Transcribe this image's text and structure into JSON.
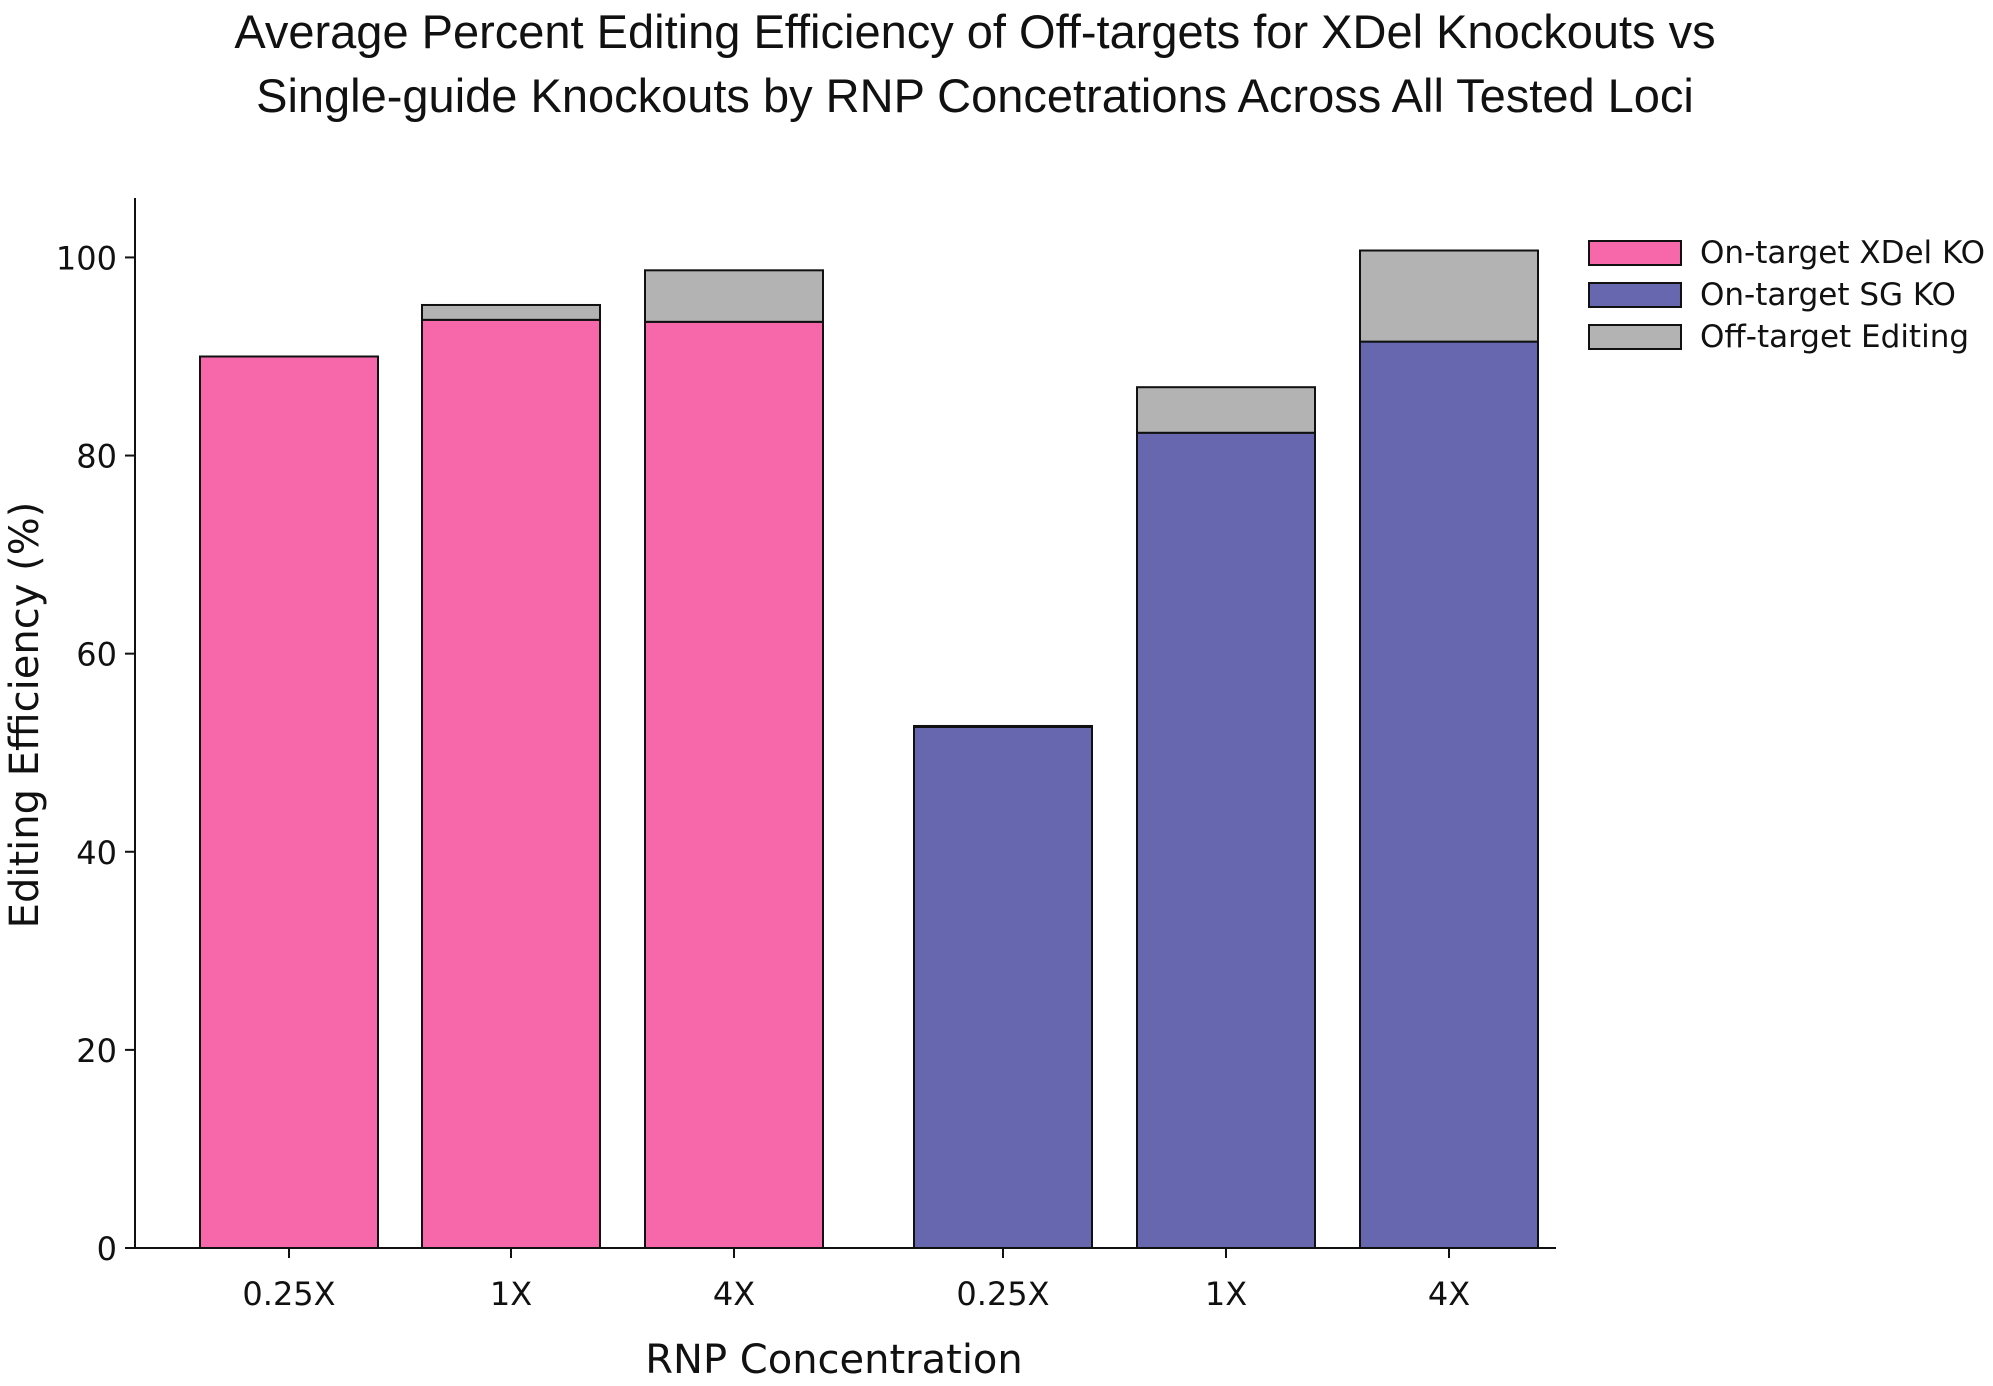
{
  "chart_data": {
    "type": "bar",
    "stacked": true,
    "title_lines": [
      "Average Percent Editing Efficiency of Off-targets for XDel Knockouts vs",
      "Single-guide Knockouts by RNP Concetrations Across All Tested Loci"
    ],
    "xlabel": "RNP Concentration",
    "ylabel": "Editing Efficiency (%)",
    "ylim": [
      0,
      106
    ],
    "yticks": [
      0,
      20,
      40,
      60,
      80,
      100
    ],
    "grid": false,
    "legend_position": "top-right",
    "categories": [
      "0.25X",
      "1X",
      "4X",
      "0.25X",
      "1X",
      "4X"
    ],
    "groups": [
      "XDel KO",
      "SG KO"
    ],
    "series": [
      {
        "name": "On-target XDel KO",
        "color": "#f768ab",
        "values": [
          90.0,
          93.7,
          93.5,
          0,
          0,
          0
        ]
      },
      {
        "name": "On-target SG KO",
        "color": "#6767b0",
        "values": [
          0,
          0,
          0,
          52.6,
          82.3,
          91.5
        ]
      },
      {
        "name": "Off-target Editing",
        "color": "#b3b3b3",
        "values": [
          0.0,
          1.5,
          5.2,
          0.1,
          4.6,
          9.2
        ]
      }
    ]
  }
}
